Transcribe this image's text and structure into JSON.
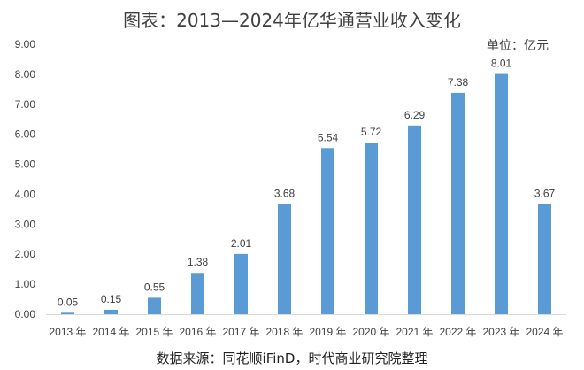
{
  "chart_data": {
    "type": "bar",
    "title": "图表：2013—2024年亿华通营业收入变化",
    "unit_label": "单位：亿元",
    "source": "数据来源：同花顺iFinD，时代商业研究院整理",
    "categories": [
      "2013 年",
      "2014 年",
      "2015 年",
      "2016 年",
      "2017 年",
      "2018 年",
      "2019 年",
      "2020 年",
      "2021 年",
      "2022 年",
      "2023 年",
      "2024 年"
    ],
    "values": [
      0.05,
      0.15,
      0.55,
      1.38,
      2.01,
      3.68,
      5.54,
      5.72,
      6.29,
      7.38,
      8.01,
      3.67
    ],
    "value_labels": [
      "0.05",
      "0.15",
      "0.55",
      "1.38",
      "2.01",
      "3.68",
      "5.54",
      "5.72",
      "6.29",
      "7.38",
      "8.01",
      "3.67"
    ],
    "ylim": [
      0,
      9
    ],
    "yticks": [
      "0.00",
      "1.00",
      "2.00",
      "3.00",
      "4.00",
      "5.00",
      "6.00",
      "7.00",
      "8.00",
      "9.00"
    ],
    "grid": false,
    "bar_color": "#5B9BD5",
    "xlabel": "",
    "ylabel": ""
  }
}
